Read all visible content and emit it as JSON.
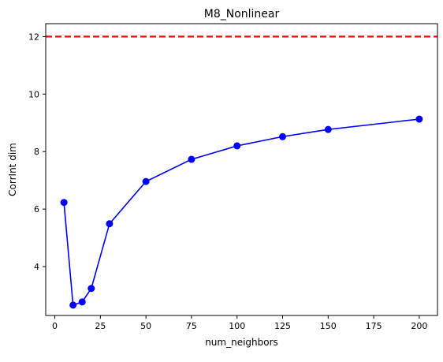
{
  "chart_data": {
    "type": "line",
    "title": "M8_Nonlinear",
    "xlabel": "num_neighbors",
    "ylabel": "CorrInt dim",
    "x": [
      5,
      10,
      15,
      20,
      30,
      50,
      75,
      100,
      125,
      150,
      200
    ],
    "series": [
      {
        "values": [
          6.23,
          2.66,
          2.77,
          3.24,
          5.49,
          6.96,
          7.73,
          8.2,
          8.52,
          8.77,
          9.13
        ],
        "color": "#0000ff",
        "marker": "circle"
      }
    ],
    "reference_line": {
      "y": 12,
      "color": "#ff0000",
      "style": "dashed"
    },
    "xlim": [
      -5,
      210
    ],
    "ylim": [
      2.3,
      12.45
    ],
    "xticks": [
      0,
      25,
      50,
      75,
      100,
      125,
      150,
      175,
      200
    ],
    "yticks": [
      4,
      6,
      8,
      10,
      12
    ],
    "grid": false,
    "legend": "none"
  }
}
